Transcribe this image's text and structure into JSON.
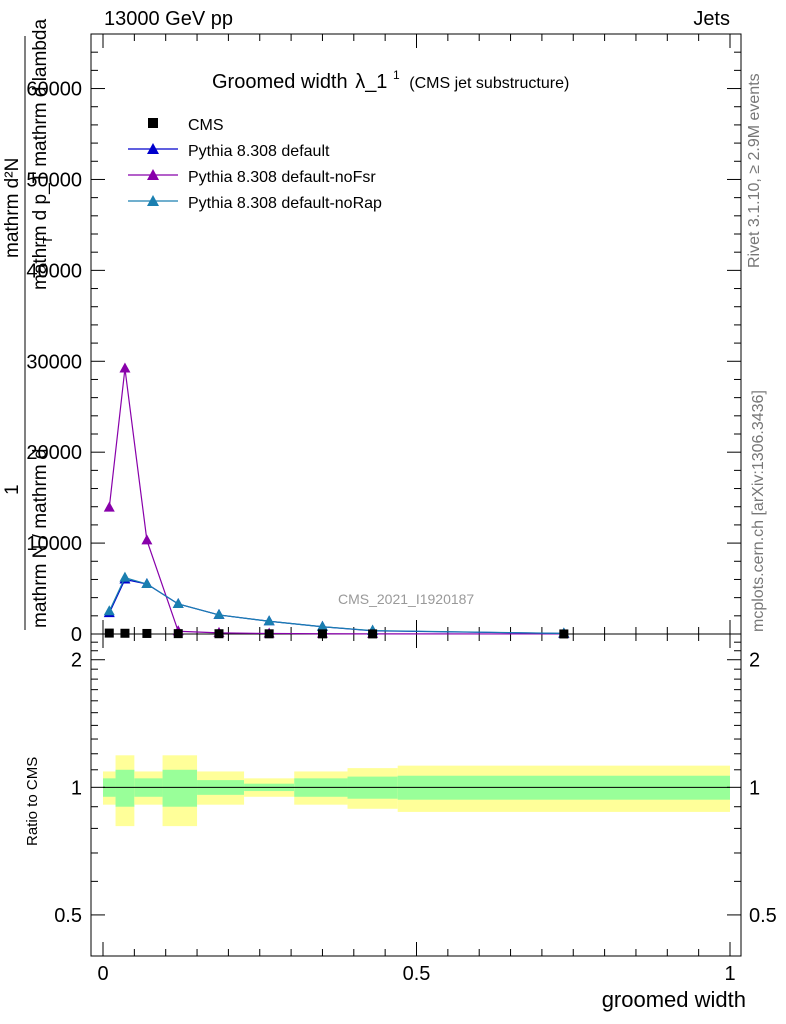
{
  "header": {
    "left": "13000 GeV pp",
    "right": "Jets"
  },
  "side_labels": {
    "rivet": "Rivet 3.1.10, ≥ 2.9M events",
    "mcplots": "mcplots.cern.ch [arXiv:1306.3436]"
  },
  "chart_data": [
    {
      "type": "line",
      "title_main": "Groomed width",
      "title_lambda": "λ_1",
      "title_sup": "1",
      "title_sub": "(CMS jet substructure)",
      "watermark": "CMS_2021_I1920187",
      "ylabel_numerator": "mathrm d²N",
      "ylabel_denominator": "mathrm d p_T mathrm d lambda",
      "ylabel_frac_num": "1",
      "ylabel_frac_den": "mathrm N / mathrm d",
      "ylabel_tsub": "T",
      "ylim": [
        0,
        66000
      ],
      "xlim": [
        -0.02,
        1.02
      ],
      "yticks": [
        0,
        10000,
        20000,
        30000,
        40000,
        50000,
        60000
      ],
      "ytick_labels": [
        "0",
        "10000",
        "20000",
        "30000",
        "40000",
        "50000",
        "60000"
      ],
      "legend_placement": "top-left",
      "series": [
        {
          "name": "CMS",
          "color": "#000000",
          "marker": "square",
          "x": [
            0.01,
            0.035,
            0.07,
            0.12,
            0.185,
            0.265,
            0.35,
            0.43,
            0.735
          ],
          "y": [
            100,
            80,
            60,
            40,
            30,
            20,
            15,
            10,
            5
          ]
        },
        {
          "name": "Pythia 8.308 default",
          "color": "#0000cc",
          "marker": "triangle",
          "x": [
            0.01,
            0.035,
            0.07,
            0.12,
            0.185,
            0.265,
            0.35,
            0.43,
            0.735
          ],
          "y": [
            2300,
            6000,
            5500,
            3300,
            2100,
            1400,
            800,
            350,
            60
          ]
        },
        {
          "name": "Pythia 8.308 default-noFsr",
          "color": "#8800aa",
          "marker": "triangle",
          "x": [
            0.01,
            0.035,
            0.07,
            0.12,
            0.185,
            0.265,
            0.35,
            0.43,
            0.735
          ],
          "y": [
            13900,
            29200,
            10300,
            300,
            120,
            60,
            30,
            15,
            5
          ]
        },
        {
          "name": "Pythia 8.308 default-noRap",
          "color": "#1a7fb0",
          "marker": "triangle",
          "x": [
            0.01,
            0.035,
            0.07,
            0.12,
            0.185,
            0.265,
            0.35,
            0.43,
            0.735
          ],
          "y": [
            2500,
            6200,
            5500,
            3300,
            2100,
            1400,
            800,
            380,
            70
          ]
        }
      ]
    },
    {
      "type": "area",
      "ylabel": "Ratio to CMS",
      "xlabel": "groomed width",
      "ylim": [
        0.4,
        2.3
      ],
      "yticks": [
        0.5,
        1,
        2
      ],
      "ytick_labels": [
        "0.5",
        "1",
        "2"
      ],
      "xticks": [
        0,
        0.5,
        1
      ],
      "xtick_labels": [
        "0",
        "0.5",
        "1"
      ],
      "bins": [
        {
          "x0": 0.0,
          "x1": 0.02,
          "stat": 0.05,
          "total": 0.09
        },
        {
          "x0": 0.02,
          "x1": 0.05,
          "stat": 0.1,
          "total": 0.19
        },
        {
          "x0": 0.05,
          "x1": 0.095,
          "stat": 0.05,
          "total": 0.09
        },
        {
          "x0": 0.095,
          "x1": 0.15,
          "stat": 0.1,
          "total": 0.19
        },
        {
          "x0": 0.15,
          "x1": 0.225,
          "stat": 0.04,
          "total": 0.09
        },
        {
          "x0": 0.225,
          "x1": 0.305,
          "stat": 0.02,
          "total": 0.05
        },
        {
          "x0": 0.305,
          "x1": 0.39,
          "stat": 0.05,
          "total": 0.09
        },
        {
          "x0": 0.39,
          "x1": 0.47,
          "stat": 0.06,
          "total": 0.11
        },
        {
          "x0": 0.47,
          "x1": 1.0,
          "stat": 0.065,
          "total": 0.125
        }
      ],
      "colors": {
        "stat": "#99ff99",
        "total": "#ffff99",
        "line": "#000000"
      }
    }
  ]
}
